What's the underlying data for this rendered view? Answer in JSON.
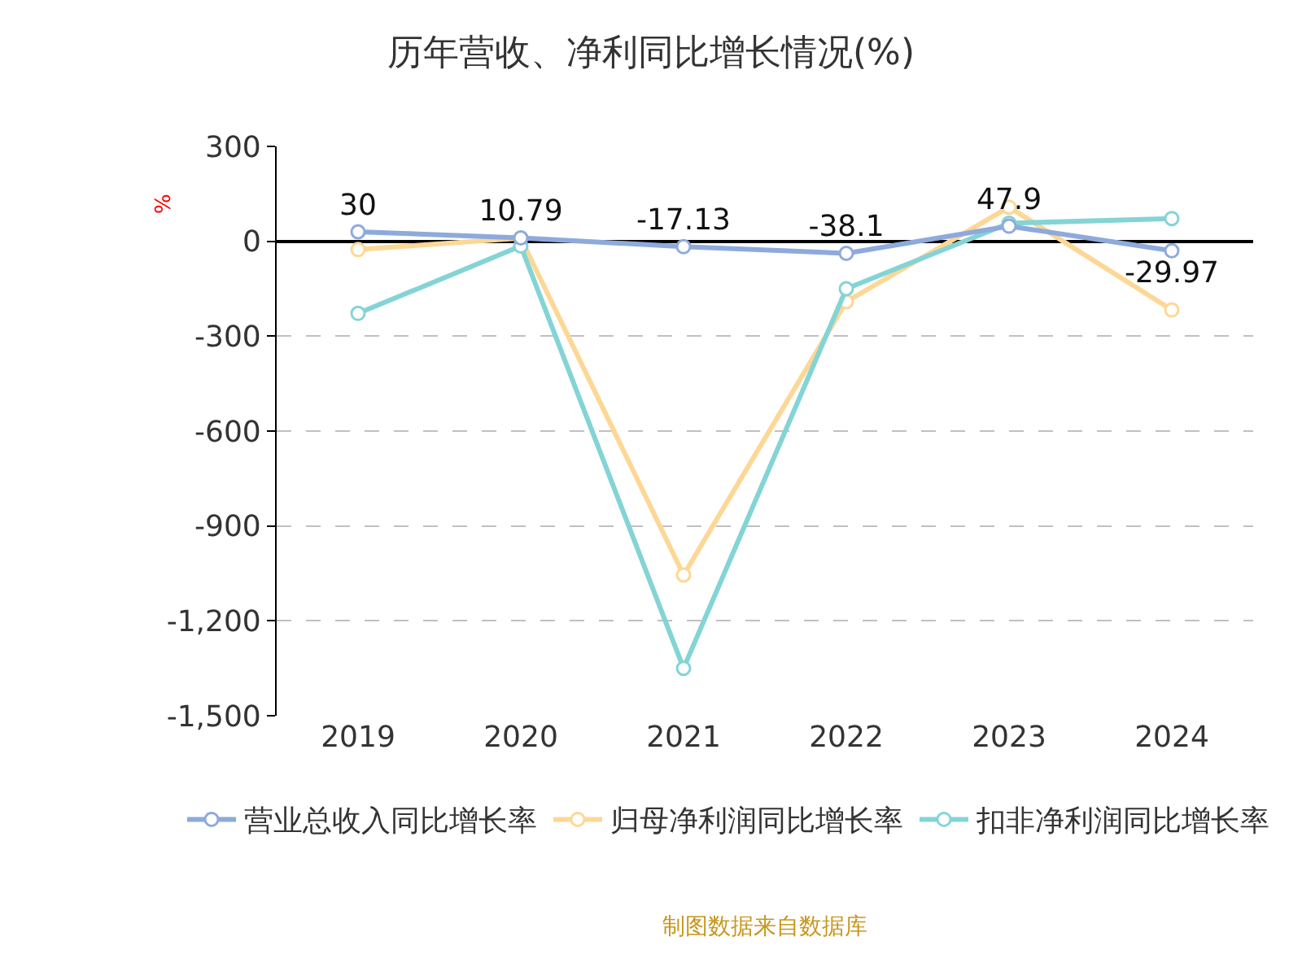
{
  "chart_data": {
    "type": "line",
    "title": "历年营收、净利同比增长情况(%)",
    "ylabel": "%",
    "categories": [
      "2019",
      "2020",
      "2021",
      "2022",
      "2023",
      "2024"
    ],
    "series": [
      {
        "name": "营业总收入同比增长率",
        "color": "#8eaadc",
        "values": [
          30,
          10.79,
          -17.13,
          -38.1,
          47.9,
          -29.97
        ],
        "value_labels": [
          "30",
          "10.79",
          "-17.13",
          "-38.1",
          "47.9",
          "-29.97"
        ]
      },
      {
        "name": "归母净利润同比增长率",
        "color": "#fdd796",
        "values": [
          -26,
          10,
          -1055,
          -191,
          108,
          -217
        ]
      },
      {
        "name": "扣非净利润同比增长率",
        "color": "#84d4d6",
        "values": [
          -228,
          -15,
          -1350,
          -150,
          57,
          72
        ]
      }
    ],
    "ylim": [
      -1500,
      300
    ],
    "yticks": [
      {
        "value": -1500,
        "label": "-1,500"
      },
      {
        "value": -1200,
        "label": "-1,200"
      },
      -900,
      -600,
      -300,
      0,
      300
    ],
    "grid": "y",
    "legend": "bottom",
    "marker": "circle",
    "line_style": "solid",
    "annotations": [
      "制图数据来自数据库"
    ]
  }
}
